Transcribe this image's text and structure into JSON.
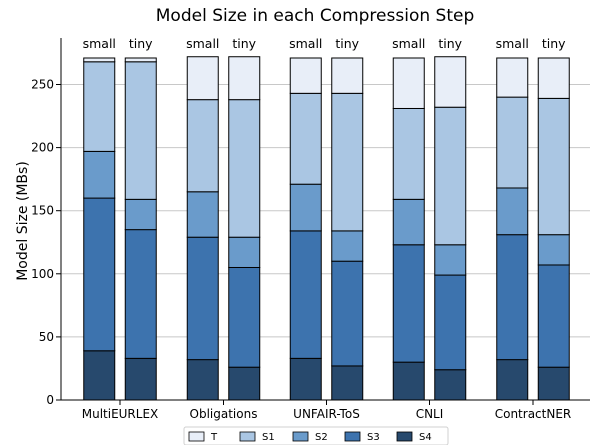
{
  "chart_data": {
    "type": "bar",
    "stacked": true,
    "title": "Model Size in each Compression Step",
    "ylabel": "Model Size (MBs)",
    "xlabel": "",
    "ylim": [
      0,
      285
    ],
    "yticks": [
      0,
      50,
      100,
      150,
      200,
      250
    ],
    "grid": "horizontal",
    "legend_position": "bottom",
    "categories": [
      "MultiEURLEX",
      "Obligations",
      "UNFAIR-ToS",
      "CNLI",
      "ContractNER"
    ],
    "variants": [
      "small",
      "tiny"
    ],
    "series": [
      {
        "name": "S4",
        "color": "#27496d",
        "values": {
          "small": [
            39,
            32,
            33,
            30,
            32
          ],
          "tiny": [
            33,
            26,
            27,
            24,
            26
          ]
        }
      },
      {
        "name": "S3",
        "color": "#3d73ae",
        "values": {
          "small": [
            121,
            97,
            101,
            93,
            99
          ],
          "tiny": [
            102,
            79,
            83,
            75,
            81
          ]
        }
      },
      {
        "name": "S2",
        "color": "#6a9bcb",
        "values": {
          "small": [
            37,
            36,
            37,
            36,
            37
          ],
          "tiny": [
            24,
            24,
            24,
            24,
            24
          ]
        }
      },
      {
        "name": "S1",
        "color": "#aac6e3",
        "values": {
          "small": [
            71,
            73,
            72,
            72,
            72
          ],
          "tiny": [
            109,
            109,
            109,
            109,
            108
          ]
        }
      },
      {
        "name": "T",
        "color": "#e8eef8",
        "values": {
          "small": [
            3,
            34,
            28,
            40,
            31
          ],
          "tiny": [
            3,
            34,
            28,
            40,
            32
          ]
        }
      }
    ],
    "legend_order": [
      "T",
      "S1",
      "S2",
      "S3",
      "S4"
    ]
  }
}
